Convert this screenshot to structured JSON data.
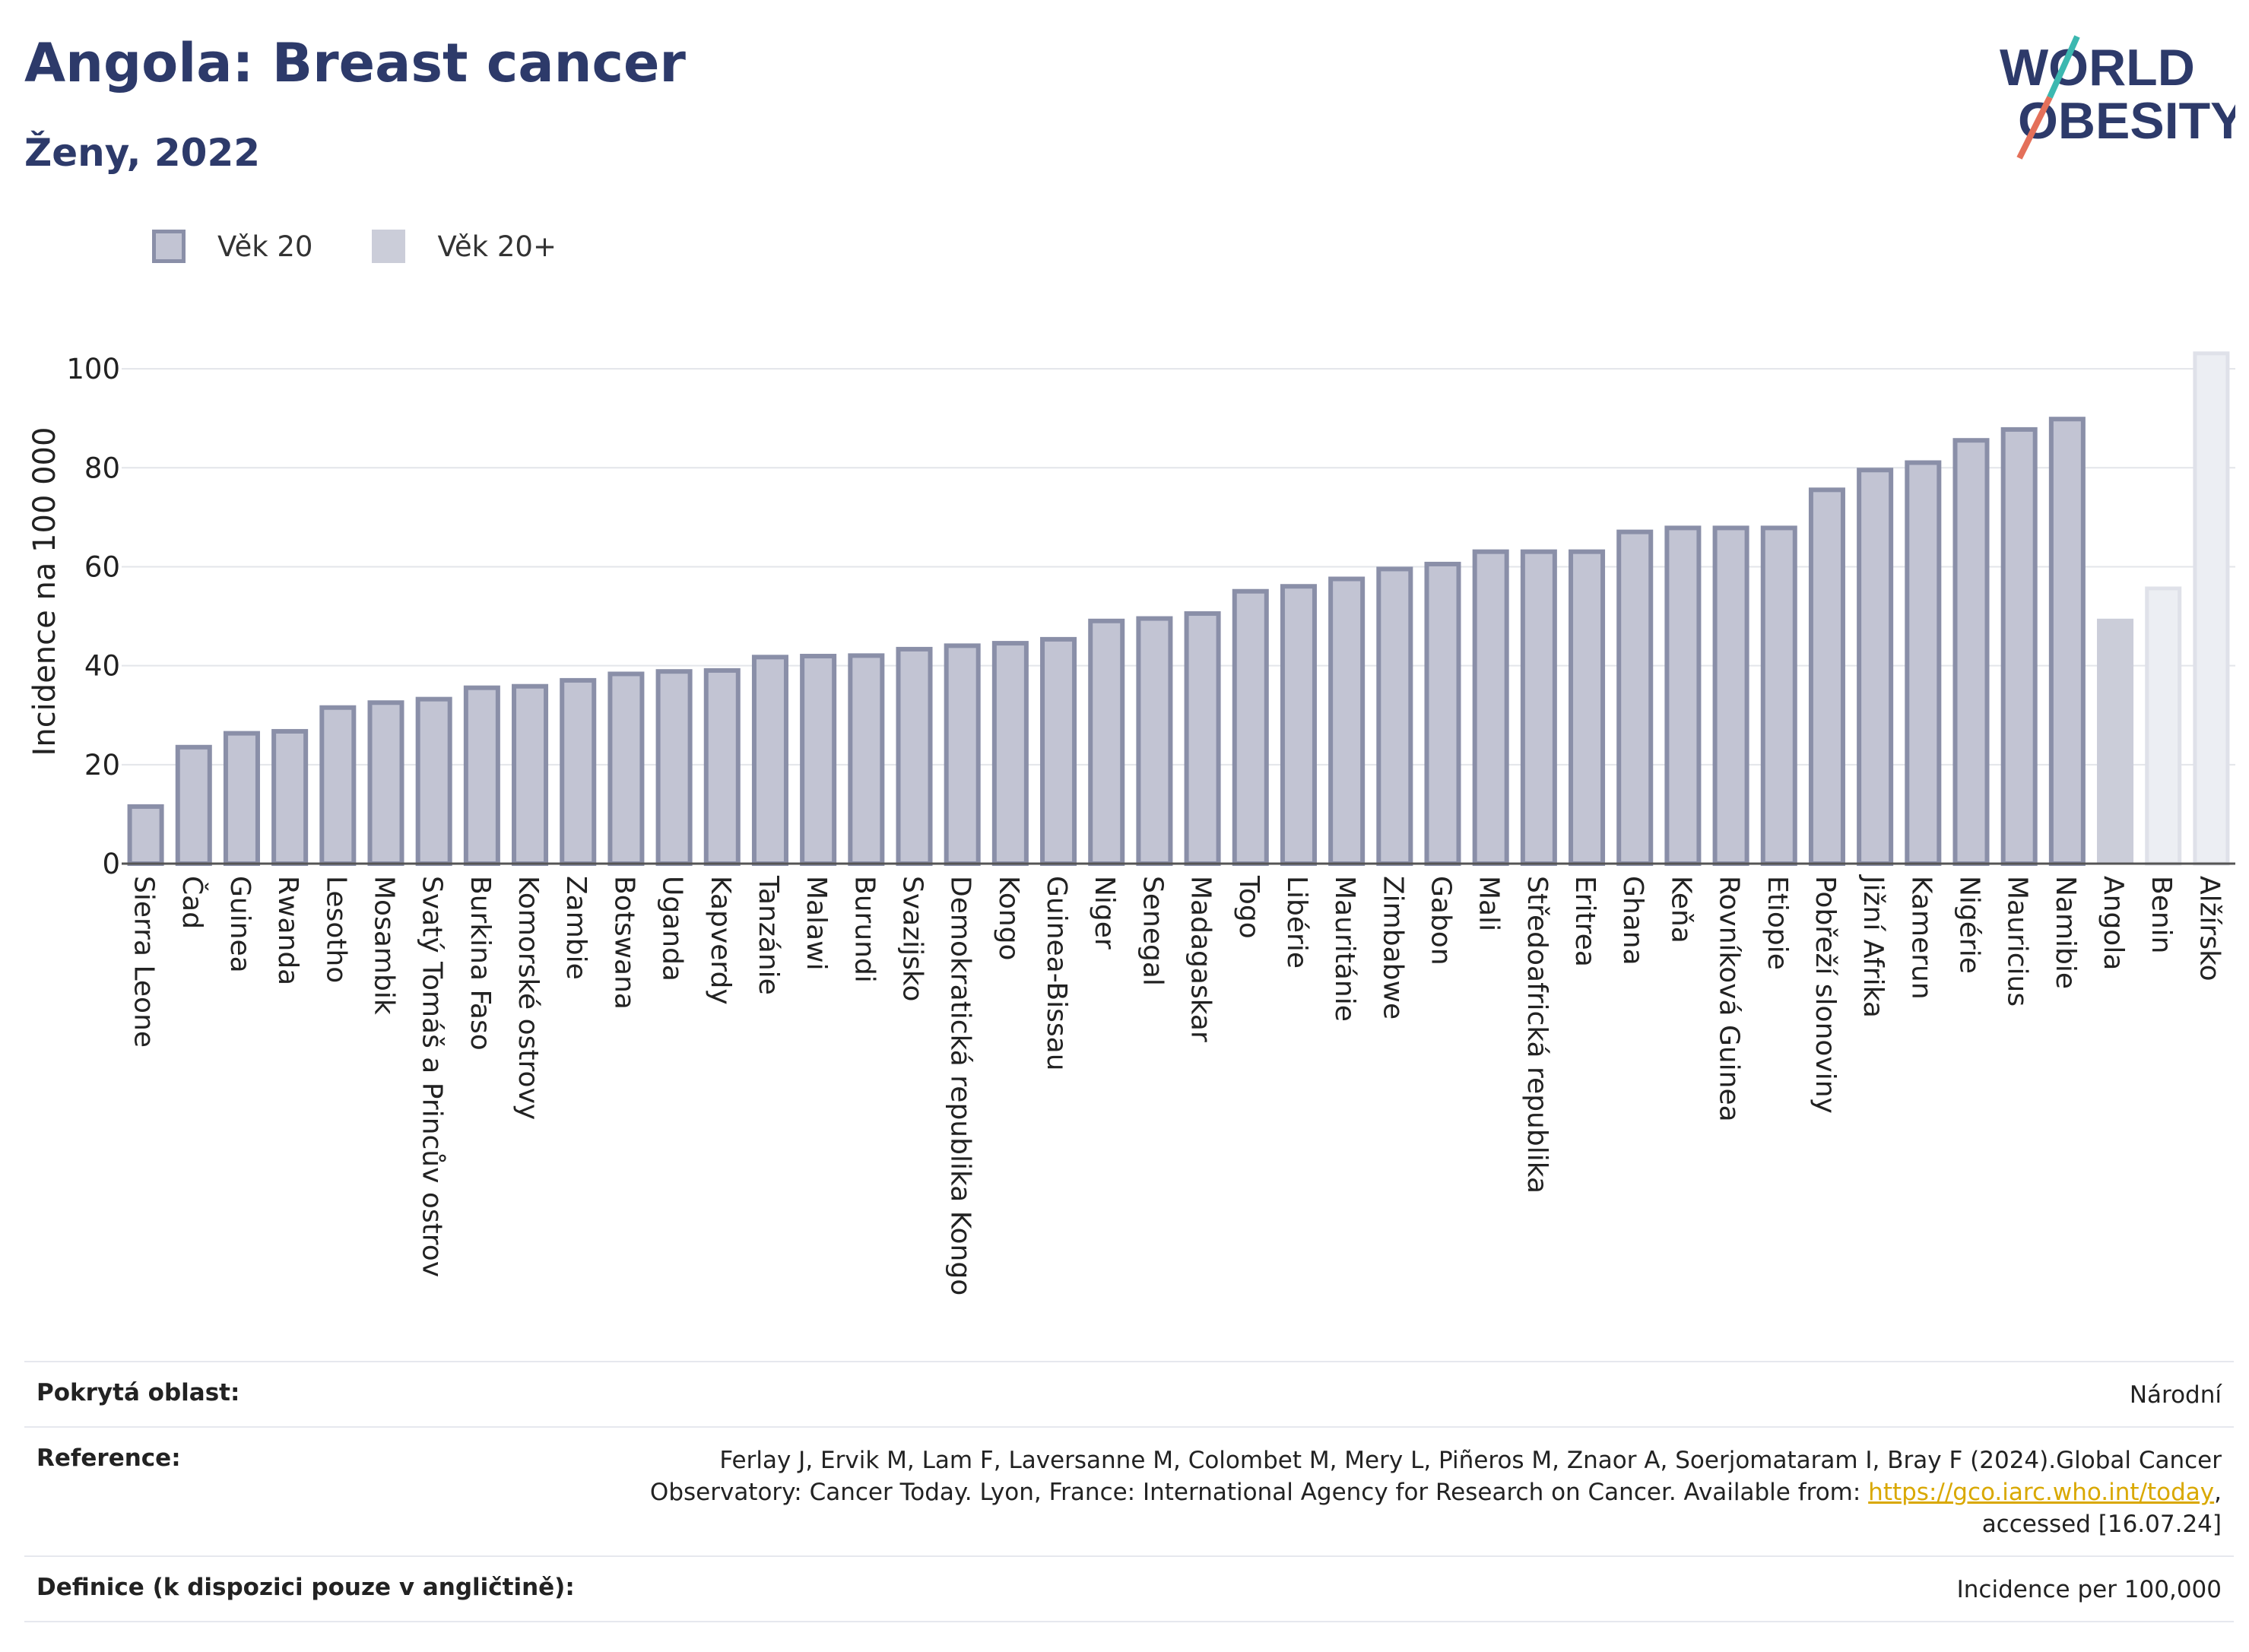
{
  "header": {
    "title": "Angola: Breast cancer",
    "subtitle": "Ženy, 2022"
  },
  "logo": {
    "line1": "WORLD",
    "line2": "OBESITY"
  },
  "legend": [
    {
      "label": "Věk 20",
      "style": "main"
    },
    {
      "label": "Věk 20+",
      "style": "light"
    }
  ],
  "colors": {
    "main_fill": "#c2c4d3",
    "main_stroke": "#8a8fa8",
    "angola_fill": "#cbcdd9",
    "light_fill": "#eceef3",
    "light_stroke": "#dfe1e9",
    "axis_text": "#222222",
    "title": "#2d3a6a"
  },
  "chart_data": {
    "type": "bar",
    "ylabel": "Incidence na 100 000",
    "ylim": [
      0,
      110
    ],
    "yticks": [
      0,
      20,
      40,
      60,
      80,
      100
    ],
    "grid": true,
    "legend_position": "top-left",
    "categories": [
      "Sierra Leone",
      "Čad",
      "Guinea",
      "Rwanda",
      "Lesotho",
      "Mosambik",
      "Svatý Tomáš a Princův ostrov",
      "Burkina Faso",
      "Komorské ostrovy",
      "Zambie",
      "Botswana",
      "Uganda",
      "Kapverdy",
      "Tanzánie",
      "Malawi",
      "Burundi",
      "Svazijsko",
      "Demokratická republika Kongo",
      "Kongo",
      "Guinea-Bissau",
      "Niger",
      "Senegal",
      "Madagaskar",
      "Togo",
      "Libérie",
      "Mauritánie",
      "Zimbabwe",
      "Gabon",
      "Mali",
      "Středoafrická republika",
      "Eritrea",
      "Ghana",
      "Keňa",
      "Rovníková Guinea",
      "Etiopie",
      "Pobřeží slonoviny",
      "Jižní Afrika",
      "Kamerun",
      "Nigérie",
      "Mauricius",
      "Namibie",
      "Angola",
      "Benin",
      "Alžírsko"
    ],
    "values": [
      12,
      24,
      26.8,
      27.2,
      32,
      33,
      33.7,
      36,
      36.3,
      37.5,
      38.8,
      39.3,
      39.5,
      42.2,
      42.4,
      42.5,
      43.8,
      44.5,
      45,
      45.8,
      49.5,
      50,
      51,
      55.5,
      56.5,
      58,
      60,
      61,
      63.5,
      63.5,
      63.5,
      67.5,
      68.3,
      68.3,
      68.3,
      76,
      80,
      81.5,
      86,
      88.2,
      90.3,
      49.5,
      56,
      103.5
    ],
    "styles": [
      "main",
      "main",
      "main",
      "main",
      "main",
      "main",
      "main",
      "main",
      "main",
      "main",
      "main",
      "main",
      "main",
      "main",
      "main",
      "main",
      "main",
      "main",
      "main",
      "main",
      "main",
      "main",
      "main",
      "main",
      "main",
      "main",
      "main",
      "main",
      "main",
      "main",
      "main",
      "main",
      "main",
      "main",
      "main",
      "main",
      "main",
      "main",
      "main",
      "main",
      "main",
      "highlight",
      "light",
      "light"
    ]
  },
  "footer": {
    "rows": [
      {
        "label": "Pokrytá oblast:",
        "value": "Národní"
      },
      {
        "label": "Reference:",
        "value_pre": "Ferlay J, Ervik M, Lam F, Laversanne M, Colombet M, Mery L, Piñeros M, Znaor A, Soerjomataram I, Bray F (2024).Global Cancer Observatory: Cancer Today. Lyon, France: International Agency for Research on Cancer. Available from: ",
        "link": "https://gco.iarc.who.int/today",
        "value_post": ", accessed [16.07.24]"
      },
      {
        "label": "Definice (k dispozici pouze v angličtině):",
        "value": "Incidence per 100,000"
      }
    ]
  }
}
